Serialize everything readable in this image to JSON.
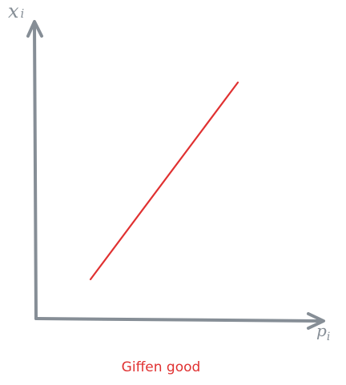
{
  "axes": {
    "y_label": {
      "base": "x",
      "sub": "i"
    },
    "x_label": {
      "base": "p",
      "sub": "i"
    },
    "color": "#868e96"
  },
  "curve": {
    "color": "#e03131",
    "direction": "upward-sloping"
  },
  "caption": {
    "text": "Giffen good",
    "color": "#e03131"
  }
}
